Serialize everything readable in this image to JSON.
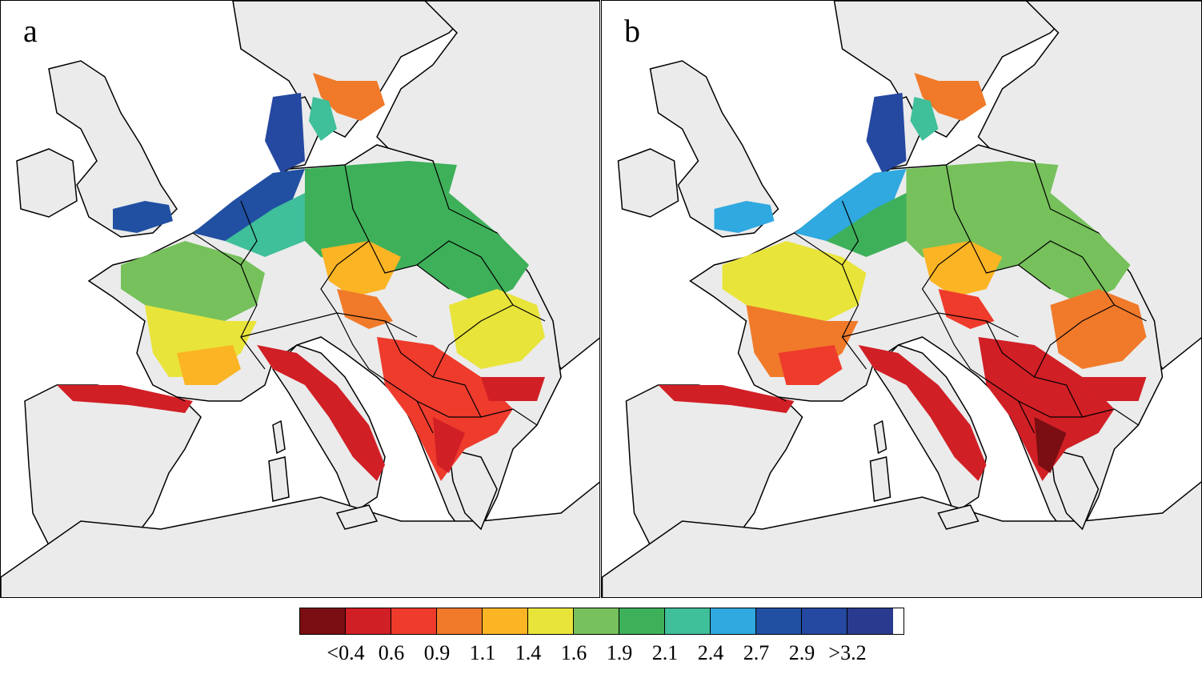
{
  "panels": [
    {
      "id": "a",
      "letter": "a"
    },
    {
      "id": "b",
      "letter": "b"
    }
  ],
  "colorbar": {
    "colors": [
      "#7a0e12",
      "#d11f26",
      "#ee3b2c",
      "#f07a2a",
      "#fbb424",
      "#e9e43a",
      "#76c15b",
      "#3eb05a",
      "#3fbf9a",
      "#2fa9e0",
      "#2150a3",
      "#2548a0",
      "#2a3b8f"
    ],
    "labels": [
      "<0.4",
      "0.6",
      "0.9",
      "1.1",
      "1.4",
      "1.6",
      "1.9",
      "2.1",
      "2.4",
      "2.7",
      "2.9",
      ">3.2"
    ]
  },
  "map_style": {
    "land": "#ebebeb",
    "sea": "#ffffff",
    "border": "#000000"
  }
}
